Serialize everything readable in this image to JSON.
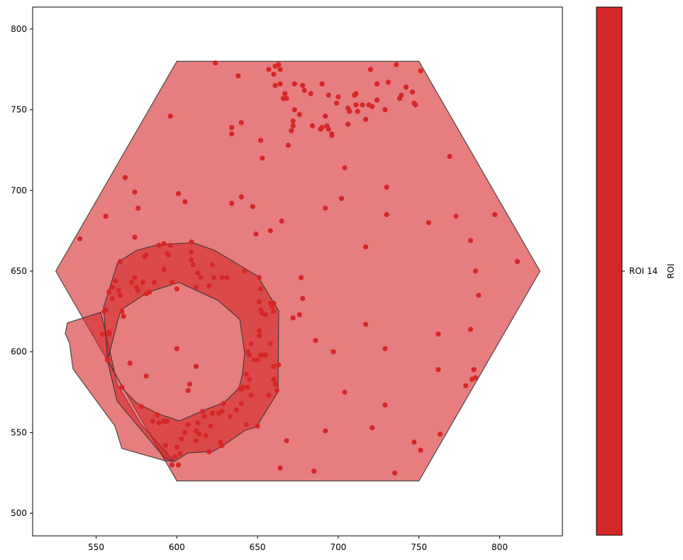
{
  "chart_data": {
    "type": "scatter",
    "title": "",
    "xlabel": "",
    "ylabel": "",
    "xlim": [
      510,
      840
    ],
    "ylim": [
      486,
      813
    ],
    "grid": false,
    "x_ticks": [
      550,
      600,
      650,
      700,
      750,
      800
    ],
    "y_ticks": [
      500,
      550,
      600,
      650,
      700,
      750,
      800
    ],
    "x_tick_labels": [
      "550",
      "600",
      "650",
      "700",
      "750",
      "800"
    ],
    "y_tick_labels": [
      "500",
      "550",
      "600",
      "650",
      "700",
      "750",
      "800"
    ],
    "colorbar": {
      "label": "ROI",
      "ticks": [
        "ROI 14"
      ],
      "color": "#d62728"
    },
    "colors": {
      "roi": "#d62728",
      "polygon_fill_opacity": 0.6,
      "polygon_edge": "#333333"
    },
    "polygons": [
      {
        "name": "hexagon",
        "points": [
          [
            525,
            650
          ],
          [
            600,
            780
          ],
          [
            750,
            780
          ],
          [
            825,
            650
          ],
          [
            750,
            520
          ],
          [
            600,
            520
          ]
        ]
      },
      {
        "name": "left-lobe",
        "points": [
          [
            552.9,
            624.5
          ],
          [
            532.2,
            617.9
          ],
          [
            530.9,
            611.3
          ],
          [
            533.5,
            605.6
          ],
          [
            535.7,
            589.3
          ],
          [
            561.6,
            554.1
          ],
          [
            566,
            540.1
          ],
          [
            592.4,
            532.6
          ],
          [
            598.6,
            532.2
          ],
          [
            578,
            555
          ],
          [
            563,
            580
          ],
          [
            557.5,
            605
          ]
        ]
      },
      {
        "name": "ring",
        "outer": [
          [
            563.4,
            655.3
          ],
          [
            574.8,
            662.8
          ],
          [
            588,
            666.3
          ],
          [
            610,
            667.6
          ],
          [
            623.6,
            662.8
          ],
          [
            650,
            646.9
          ],
          [
            663.1,
            625.4
          ],
          [
            662.7,
            575.2
          ],
          [
            649.1,
            553.3
          ],
          [
            642.5,
            551.5
          ],
          [
            628,
            541.4
          ],
          [
            622.3,
            538.3
          ],
          [
            606.9,
            537.4
          ],
          [
            598.6,
            532.2
          ],
          [
            592.4,
            534.3
          ],
          [
            563,
            569.5
          ],
          [
            557.2,
            593.7
          ],
          [
            554.6,
            627.6
          ]
        ],
        "inner": [
          [
            565.2,
            625.8
          ],
          [
            581.9,
            636.8
          ],
          [
            601.2,
            643
          ],
          [
            625.4,
            632
          ],
          [
            639,
            620.1
          ],
          [
            642,
            599.4
          ],
          [
            640.7,
            586.2
          ],
          [
            638.5,
            577.4
          ],
          [
            629.3,
            568.6
          ],
          [
            617.9,
            564.2
          ],
          [
            601.6,
            557.2
          ],
          [
            588.4,
            561.6
          ],
          [
            574.8,
            568.6
          ],
          [
            567.4,
            576.1
          ],
          [
            557.2,
            595
          ],
          [
            560.8,
            609.1
          ]
        ]
      }
    ],
    "series": [
      {
        "name": "ROI 14",
        "points": [
          [
            540,
            670
          ],
          [
            556,
            684
          ],
          [
            568,
            708
          ],
          [
            574,
            699
          ],
          [
            576,
            689
          ],
          [
            574,
            671
          ],
          [
            596,
            746
          ],
          [
            601,
            698
          ],
          [
            605,
            693
          ],
          [
            624,
            779
          ],
          [
            638,
            771
          ],
          [
            640,
            742
          ],
          [
            634,
            739
          ],
          [
            634,
            735
          ],
          [
            634,
            692
          ],
          [
            640,
            696
          ],
          [
            647,
            690
          ],
          [
            649,
            673
          ],
          [
            658,
            675
          ],
          [
            665,
            681
          ],
          [
            652,
            731
          ],
          [
            653,
            720
          ],
          [
            657,
            775
          ],
          [
            660,
            772
          ],
          [
            661,
            777
          ],
          [
            663,
            778
          ],
          [
            664,
            775
          ],
          [
            661,
            765
          ],
          [
            664,
            766
          ],
          [
            666,
            757
          ],
          [
            667,
            760
          ],
          [
            668,
            757
          ],
          [
            669,
            728
          ],
          [
            671,
            737
          ],
          [
            672,
            740
          ],
          [
            672,
            743
          ],
          [
            673,
            750
          ],
          [
            673,
            766
          ],
          [
            676,
            747
          ],
          [
            678,
            765
          ],
          [
            679,
            762
          ],
          [
            683,
            760
          ],
          [
            684,
            740
          ],
          [
            689,
            738
          ],
          [
            690,
            766
          ],
          [
            690,
            739
          ],
          [
            692,
            746
          ],
          [
            694,
            759
          ],
          [
            693,
            740
          ],
          [
            694,
            738
          ],
          [
            696,
            734
          ],
          [
            696,
            735
          ],
          [
            699,
            754
          ],
          [
            700,
            758
          ],
          [
            704,
            714
          ],
          [
            706,
            751
          ],
          [
            706,
            741
          ],
          [
            707,
            749
          ],
          [
            710,
            759
          ],
          [
            711,
            760
          ],
          [
            711,
            753
          ],
          [
            712,
            749
          ],
          [
            715,
            753
          ],
          [
            717,
            744
          ],
          [
            719,
            753
          ],
          [
            720,
            775
          ],
          [
            721,
            752
          ],
          [
            724,
            756
          ],
          [
            724,
            766
          ],
          [
            729,
            750
          ],
          [
            731,
            767
          ],
          [
            736,
            778
          ],
          [
            738,
            757
          ],
          [
            739,
            759
          ],
          [
            742,
            764
          ],
          [
            746,
            761
          ],
          [
            747,
            754
          ],
          [
            748,
            753
          ],
          [
            751,
            774
          ],
          [
            702,
            695
          ],
          [
            692,
            689
          ],
          [
            730,
            685
          ],
          [
            730,
            702
          ],
          [
            756,
            680
          ],
          [
            769,
            721
          ],
          [
            773,
            684
          ],
          [
            797,
            685
          ],
          [
            811,
            656
          ],
          [
            782,
            669
          ],
          [
            785,
            650
          ],
          [
            787,
            635
          ],
          [
            782,
            614
          ],
          [
            762,
            611
          ],
          [
            762,
            589
          ],
          [
            784,
            589
          ],
          [
            779,
            579
          ],
          [
            783,
            583
          ],
          [
            785,
            584
          ],
          [
            717,
            617
          ],
          [
            717,
            665
          ],
          [
            697,
            600
          ],
          [
            686,
            607
          ],
          [
            704,
            575
          ],
          [
            729,
            567
          ],
          [
            729,
            602
          ],
          [
            721,
            553
          ],
          [
            692,
            551
          ],
          [
            685,
            526
          ],
          [
            668,
            545
          ],
          [
            664,
            528
          ],
          [
            735,
            525
          ],
          [
            747,
            544
          ],
          [
            751,
            539
          ],
          [
            763,
            549
          ],
          [
            677,
            646
          ],
          [
            678,
            633
          ],
          [
            676,
            623
          ],
          [
            672,
            621
          ],
          [
            659,
            628
          ],
          [
            660,
            630
          ],
          [
            554,
            611
          ],
          [
            558,
            611
          ],
          [
            558,
            612
          ],
          [
            557,
            595
          ],
          [
            555,
            625
          ],
          [
            556,
            626
          ],
          [
            558,
            637
          ],
          [
            560,
            640
          ],
          [
            562,
            644
          ],
          [
            564,
            638
          ],
          [
            565,
            635
          ],
          [
            566,
            625
          ],
          [
            567,
            622
          ],
          [
            565,
            656
          ],
          [
            560,
            633
          ],
          [
            572,
            643
          ],
          [
            574,
            646
          ],
          [
            575,
            640
          ],
          [
            576,
            638
          ],
          [
            579,
            643
          ],
          [
            581,
            636
          ],
          [
            583,
            637
          ],
          [
            581,
            660
          ],
          [
            580,
            659
          ],
          [
            586,
            643
          ],
          [
            589,
            666
          ],
          [
            592,
            667
          ],
          [
            594,
            661
          ],
          [
            592,
            651
          ],
          [
            595,
            660
          ],
          [
            596,
            666
          ],
          [
            597,
            643
          ],
          [
            600,
            639
          ],
          [
            609,
            668
          ],
          [
            609,
            662
          ],
          [
            609,
            657
          ],
          [
            610,
            654
          ],
          [
            613,
            649
          ],
          [
            612,
            640
          ],
          [
            615,
            646
          ],
          [
            620,
            641
          ],
          [
            622,
            654
          ],
          [
            623,
            646
          ],
          [
            628,
            646
          ],
          [
            631,
            646
          ],
          [
            642,
            650
          ],
          [
            651,
            646
          ],
          [
            652,
            639
          ],
          [
            651,
            631
          ],
          [
            652,
            626
          ],
          [
            658,
            630
          ],
          [
            660,
            625
          ],
          [
            655,
            623
          ],
          [
            653,
            624
          ],
          [
            651,
            613
          ],
          [
            651,
            610
          ],
          [
            646,
            605
          ],
          [
            644,
            600
          ],
          [
            645,
            598
          ],
          [
            648,
            595
          ],
          [
            650,
            595
          ],
          [
            652,
            598
          ],
          [
            654,
            598
          ],
          [
            655,
            598
          ],
          [
            658,
            605
          ],
          [
            660,
            591
          ],
          [
            661,
            580
          ],
          [
            662,
            576
          ],
          [
            663,
            592
          ],
          [
            660,
            583
          ],
          [
            657,
            573
          ],
          [
            646,
            573
          ],
          [
            650,
            554
          ],
          [
            643,
            555
          ],
          [
            644,
            578
          ],
          [
            641,
            578
          ],
          [
            640,
            577
          ],
          [
            639,
            577
          ],
          [
            645,
            583
          ],
          [
            643,
            586
          ],
          [
            640,
            568
          ],
          [
            637,
            564
          ],
          [
            633,
            560
          ],
          [
            629,
            568
          ],
          [
            626,
            562
          ],
          [
            628,
            563
          ],
          [
            622,
            562
          ],
          [
            621,
            554
          ],
          [
            616,
            563
          ],
          [
            617,
            560
          ],
          [
            612,
            551
          ],
          [
            613,
            556
          ],
          [
            614,
            549
          ],
          [
            607,
            555
          ],
          [
            605,
            550
          ],
          [
            603,
            546
          ],
          [
            602,
            537
          ],
          [
            600,
            541
          ],
          [
            599,
            535
          ],
          [
            601,
            530
          ],
          [
            597,
            530
          ],
          [
            593,
            542
          ],
          [
            594,
            557
          ],
          [
            589,
            556
          ],
          [
            588,
            561
          ],
          [
            585,
            557
          ],
          [
            578,
            566
          ],
          [
            571,
            593
          ],
          [
            581,
            585
          ],
          [
            600,
            602
          ],
          [
            607,
            576
          ],
          [
            608,
            580
          ],
          [
            612,
            591
          ],
          [
            618,
            548
          ],
          [
            627,
            544
          ],
          [
            628,
            542
          ],
          [
            620,
            538
          ],
          [
            612,
            545
          ],
          [
            592,
            557
          ],
          [
            566,
            578
          ]
        ]
      }
    ]
  }
}
